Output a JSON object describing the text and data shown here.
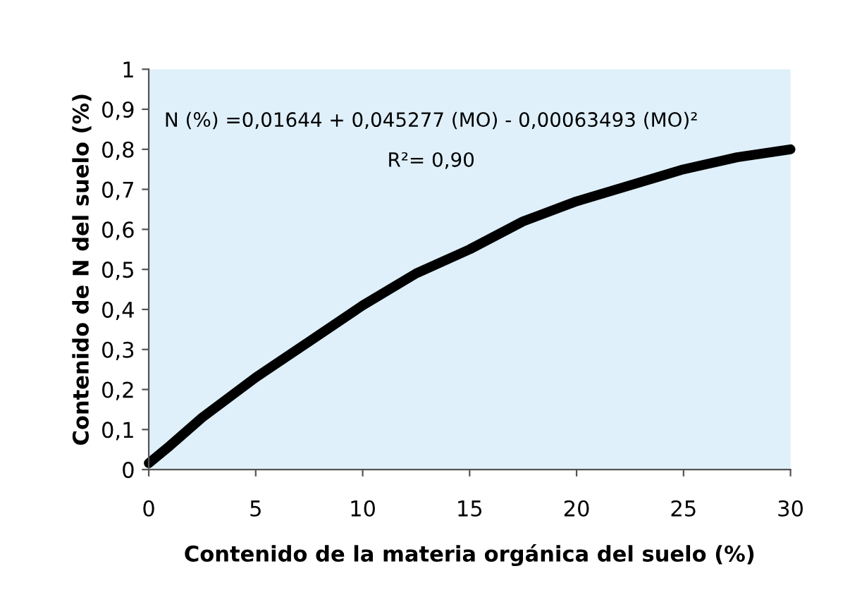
{
  "chart_data": {
    "type": "line",
    "xlabel": "Contenido de la materia orgánica del suelo (%)",
    "ylabel": "Contenido de N del suelo (%)",
    "annotations": [
      "N (%) =0,01644 + 0,045277 (MO) - 0,00063493 (MO)²",
      "R²= 0,90"
    ],
    "x": [
      0,
      1,
      2.5,
      5,
      7.5,
      10,
      12.5,
      15,
      17.5,
      20,
      22.5,
      25,
      27.5,
      30
    ],
    "series": [
      {
        "color": "#000000",
        "values": [
          0.016,
          0.06,
          0.13,
          0.23,
          0.32,
          0.41,
          0.49,
          0.55,
          0.62,
          0.67,
          0.71,
          0.75,
          0.78,
          0.8
        ]
      }
    ],
    "xlim": [
      0,
      30
    ],
    "ylim": [
      0,
      1
    ],
    "xticks": [
      0,
      5,
      10,
      15,
      20,
      25,
      30
    ],
    "yticks": [
      0,
      {
        "value": 0.1,
        "label": "0,1"
      },
      {
        "value": 0.2,
        "label": "0,2"
      },
      {
        "value": 0.3,
        "label": "0,3"
      },
      {
        "value": 0.4,
        "label": "0,4"
      },
      {
        "value": 0.5,
        "label": "0,5"
      },
      {
        "value": 0.6,
        "label": "0,6"
      },
      {
        "value": 0.7,
        "label": "0,7"
      },
      {
        "value": 0.8,
        "label": "0,8"
      },
      {
        "value": 0.9,
        "label": "0,9"
      },
      1
    ],
    "grid": false,
    "marker": "none",
    "line_style": "solid"
  }
}
